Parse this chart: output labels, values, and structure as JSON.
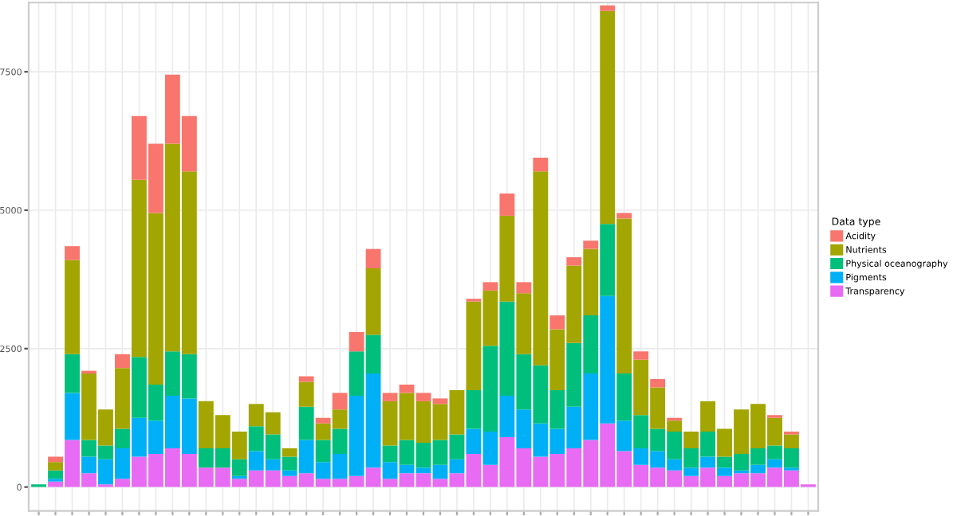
{
  "chart_data": {
    "type": "bar",
    "stacked": true,
    "legend_title": "Data type",
    "legend": "right",
    "grid": true,
    "categories": [
      null,
      null,
      null,
      null,
      null,
      null,
      null,
      null,
      null,
      null,
      null,
      null,
      null,
      null,
      null,
      null,
      null,
      null,
      null,
      null,
      null,
      null,
      null,
      null,
      null,
      null,
      null,
      null,
      null,
      null,
      null,
      null,
      null,
      null,
      null,
      null,
      null,
      null,
      null,
      null,
      null,
      null,
      null,
      null,
      null,
      null,
      null
    ],
    "ylim": [
      -430,
      8750
    ],
    "yticks": [
      0,
      2500,
      5000,
      7500
    ],
    "series": [
      {
        "name": "Transparency",
        "color": "#e76bf3",
        "values": [
          0,
          100,
          850,
          250,
          50,
          150,
          550,
          600,
          700,
          600,
          350,
          350,
          150,
          300,
          300,
          200,
          250,
          150,
          150,
          200,
          350,
          150,
          250,
          250,
          150,
          250,
          600,
          400,
          900,
          700,
          550,
          600,
          700,
          850,
          1150,
          650,
          400,
          350,
          300,
          200,
          350,
          200,
          250,
          250,
          350,
          300,
          50
        ]
      },
      {
        "name": "Pigments",
        "color": "#00b0f6",
        "values": [
          0,
          50,
          850,
          300,
          450,
          550,
          700,
          600,
          950,
          1000,
          0,
          0,
          50,
          350,
          200,
          100,
          600,
          300,
          450,
          1450,
          1700,
          300,
          150,
          100,
          250,
          250,
          450,
          600,
          750,
          700,
          600,
          450,
          750,
          1200,
          2300,
          550,
          300,
          300,
          200,
          150,
          200,
          150,
          50,
          150,
          150,
          50,
          0
        ]
      },
      {
        "name": "Physical oceanography",
        "color": "#00bf7d",
        "values": [
          50,
          150,
          700,
          300,
          250,
          350,
          1100,
          650,
          800,
          800,
          350,
          350,
          300,
          450,
          450,
          250,
          600,
          400,
          450,
          800,
          700,
          300,
          450,
          450,
          450,
          450,
          700,
          1550,
          1700,
          1000,
          1050,
          700,
          1150,
          1050,
          1300,
          850,
          600,
          400,
          500,
          350,
          450,
          200,
          300,
          300,
          250,
          350,
          0
        ]
      },
      {
        "name": "Nutrients",
        "color": "#a3a500",
        "values": [
          0,
          150,
          1700,
          1200,
          650,
          1100,
          3200,
          3100,
          3750,
          3300,
          850,
          600,
          500,
          400,
          400,
          150,
          450,
          300,
          350,
          0,
          1200,
          800,
          850,
          750,
          650,
          800,
          1600,
          1000,
          1550,
          1100,
          3500,
          1100,
          1400,
          1200,
          3850,
          2800,
          1000,
          750,
          200,
          300,
          550,
          500,
          800,
          800,
          500,
          250,
          0
        ]
      },
      {
        "name": "Acidity",
        "color": "#f8766d",
        "values": [
          0,
          100,
          250,
          50,
          0,
          250,
          1150,
          1250,
          1250,
          1000,
          0,
          0,
          0,
          0,
          0,
          0,
          100,
          100,
          300,
          350,
          350,
          150,
          150,
          150,
          100,
          0,
          50,
          150,
          400,
          200,
          250,
          250,
          150,
          150,
          100,
          100,
          150,
          150,
          50,
          0,
          0,
          0,
          0,
          0,
          50,
          50,
          0
        ]
      }
    ]
  }
}
